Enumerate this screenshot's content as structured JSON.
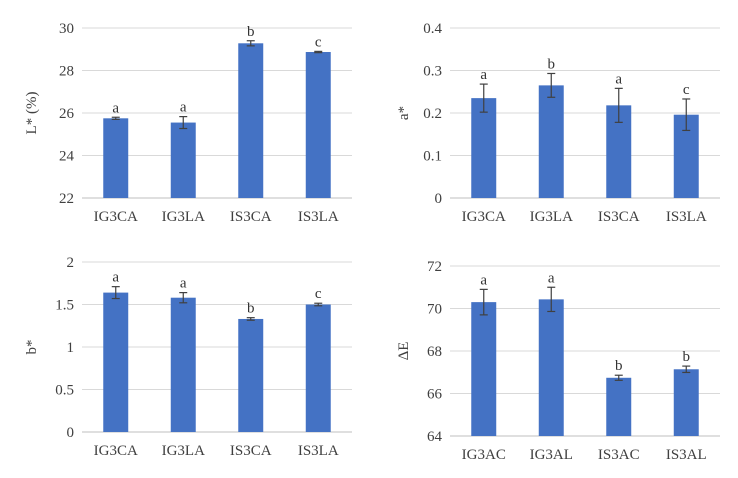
{
  "colors": {
    "bar": "#4472C4",
    "grid": "#d9d9d9",
    "axis": "#bfbfbf",
    "error": "#404040",
    "text": "#404040"
  },
  "chart_data": [
    {
      "type": "bar",
      "title": "",
      "ylabel": "L* (%)",
      "categories": [
        "IG3CA",
        "IG3LA",
        "IS3CA",
        "IS3LA"
      ],
      "values": [
        25.75,
        25.55,
        29.28,
        28.87
      ],
      "errors": [
        0.05,
        0.28,
        0.12,
        0.03
      ],
      "labels": [
        "a",
        "a",
        "b",
        "c"
      ],
      "ylim": [
        22,
        30
      ],
      "yticks": [
        22,
        24,
        26,
        28,
        30
      ],
      "ytick_labels": [
        "22",
        "24",
        "26",
        "28",
        "30"
      ]
    },
    {
      "type": "bar",
      "title": "",
      "ylabel": "a*",
      "categories": [
        "IG3CA",
        "IG3LA",
        "IS3CA",
        "IS3LA"
      ],
      "values": [
        0.235,
        0.265,
        0.218,
        0.196
      ],
      "errors": [
        0.033,
        0.028,
        0.04,
        0.037
      ],
      "labels": [
        "a",
        "b",
        "a",
        "c"
      ],
      "ylim": [
        0,
        0.4
      ],
      "yticks": [
        0,
        0.1,
        0.2,
        0.3,
        0.4
      ],
      "ytick_labels": [
        "0",
        "0.1",
        "0.2",
        "0.3",
        "0.4"
      ]
    },
    {
      "type": "bar",
      "title": "",
      "ylabel": "b*",
      "categories": [
        "IG3CA",
        "IG3LA",
        "IS3CA",
        "IS3LA"
      ],
      "values": [
        1.64,
        1.58,
        1.33,
        1.5
      ],
      "errors": [
        0.07,
        0.06,
        0.015,
        0.015
      ],
      "labels": [
        "a",
        "a",
        "b",
        "c"
      ],
      "ylim": [
        0,
        2
      ],
      "yticks": [
        0,
        0.5,
        1,
        1.5,
        2
      ],
      "ytick_labels": [
        "0",
        "0.5",
        "1",
        "1.5",
        "2"
      ]
    },
    {
      "type": "bar",
      "title": "",
      "ylabel": "ΔE",
      "categories": [
        "IG3AC",
        "IG3AL",
        "IS3AC",
        "IS3AL"
      ],
      "values": [
        70.3,
        70.43,
        66.74,
        67.14
      ],
      "errors": [
        0.6,
        0.57,
        0.12,
        0.15
      ],
      "labels": [
        "a",
        "a",
        "b",
        "b"
      ],
      "ylim": [
        64,
        72
      ],
      "yticks": [
        64,
        66,
        68,
        70,
        72
      ],
      "ytick_labels": [
        "64",
        "66",
        "68",
        "70",
        "72"
      ]
    }
  ]
}
